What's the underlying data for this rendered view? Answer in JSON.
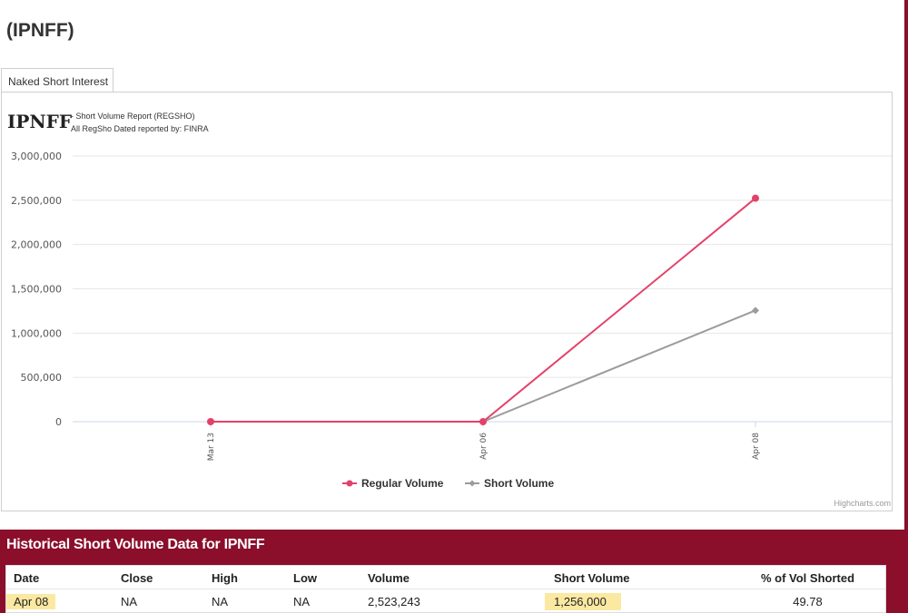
{
  "page": {
    "title": "(IPNFF)"
  },
  "tab": {
    "label": "Naked Short Interest"
  },
  "chart_header": {
    "ticker": "IPNFF",
    "line1": "- Short Volume Report  (REGSHO)",
    "line2": "All RegSho Dated reported by: FINRA"
  },
  "chart_data": {
    "type": "line",
    "categories": [
      "Mar 13",
      "Apr 06",
      "Apr 08"
    ],
    "series": [
      {
        "name": "Regular Volume",
        "values": [
          0,
          0,
          2523243
        ],
        "color": "#e4416a",
        "marker": "circle"
      },
      {
        "name": "Short Volume",
        "values": [
          0,
          0,
          1256000
        ],
        "color": "#9b9b9b",
        "marker": "diamond"
      }
    ],
    "ylim": [
      0,
      3000000
    ],
    "yticks": [
      "0",
      "500,000",
      "1,000,000",
      "1,500,000",
      "2,000,000",
      "2,500,000",
      "3,000,000"
    ],
    "grid": true,
    "legend": "bottom-center",
    "credit": "Highcharts.com"
  },
  "historical": {
    "title": "Historical Short Volume Data for IPNFF",
    "columns": [
      "Date",
      "Close",
      "High",
      "Low",
      "Volume",
      "Short Volume",
      "% of Vol Shorted"
    ],
    "rows": [
      [
        "Apr 08",
        "NA",
        "NA",
        "NA",
        "2,523,243",
        "1,256,000",
        "49.78"
      ]
    ]
  }
}
